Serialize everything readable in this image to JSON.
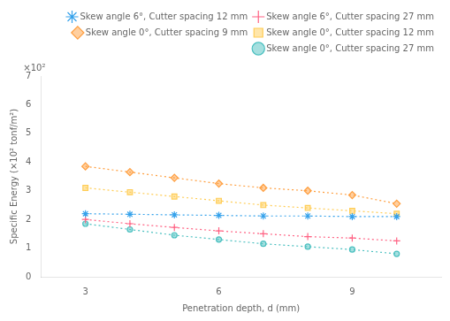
{
  "chart_data": {
    "type": "line",
    "xlabel": "Penetration depth, d (mm)",
    "ylabel": "Specific Energy (×10² tonf/m²)",
    "annotation": "×10²",
    "x": [
      3,
      4,
      5,
      6,
      7,
      8,
      9,
      10
    ],
    "series": [
      {
        "name": "Skew angle 6°, Cutter spacing 12 mm",
        "values": [
          2.2,
          2.18,
          2.16,
          2.14,
          2.12,
          2.12,
          2.1,
          2.1
        ],
        "marker": "star",
        "line_style": "dotted"
      },
      {
        "name": "Skew angle 6°, Cutter spacing 27 mm",
        "values": [
          2.0,
          1.85,
          1.72,
          1.6,
          1.5,
          1.4,
          1.35,
          1.25
        ],
        "marker": "plus",
        "line_style": "dotted"
      },
      {
        "name": "Skew angle 0°, Cutter spacing 9 mm",
        "values": [
          3.85,
          3.65,
          3.45,
          3.25,
          3.1,
          3.0,
          2.85,
          2.55
        ],
        "marker": "diamond",
        "line_style": "dotted"
      },
      {
        "name": "Skew angle 0°, Cutter spacing 12 mm",
        "values": [
          3.1,
          2.95,
          2.8,
          2.65,
          2.5,
          2.4,
          2.3,
          2.2
        ],
        "marker": "square",
        "line_style": "dotted"
      },
      {
        "name": "Skew angle 0°, Cutter spacing 27 mm",
        "values": [
          1.85,
          1.65,
          1.45,
          1.3,
          1.15,
          1.05,
          0.95,
          0.8
        ],
        "marker": "point",
        "line_style": "dotted"
      }
    ],
    "xlim": [
      2,
      11
    ],
    "ylim": [
      0,
      7
    ],
    "xticks": [
      3,
      6,
      9
    ],
    "yticks": [
      0,
      1,
      2,
      3,
      4,
      5,
      6,
      7
    ],
    "grid": false,
    "legend": "upper right"
  }
}
